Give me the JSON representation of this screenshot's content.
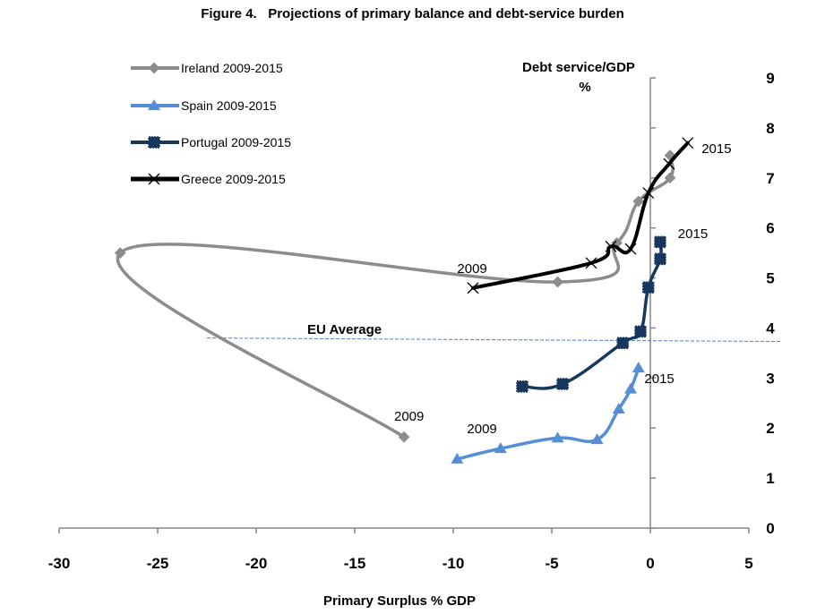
{
  "chart_data": {
    "type": "line",
    "title": "Figure 4.   Projections of primary balance and debt-service burden",
    "xlabel": "Primary Surplus % GDP",
    "ylabel": "Debt service/GDP",
    "ylabel_unit": "%",
    "xlim": [
      -30,
      5
    ],
    "ylim": [
      0,
      9
    ],
    "x_ticks": [
      -30,
      -25,
      -20,
      -15,
      -10,
      -5,
      0,
      5
    ],
    "y_ticks": [
      0,
      1,
      2,
      3,
      4,
      5,
      6,
      7,
      8,
      9
    ],
    "grid": false,
    "legend_position": "top-left",
    "series": [
      {
        "name": "Ireland 2009-2015",
        "color": "#8c8c8c",
        "marker": "diamond",
        "points": [
          {
            "x": -12.5,
            "y": 1.82
          },
          {
            "x": -26.9,
            "y": 5.5
          },
          {
            "x": -4.7,
            "y": 4.92
          },
          {
            "x": -1.7,
            "y": 5.7
          },
          {
            "x": -0.6,
            "y": 6.53
          },
          {
            "x": 1.0,
            "y": 7.0
          },
          {
            "x": 1.0,
            "y": 7.45
          }
        ]
      },
      {
        "name": "Spain 2009-2015",
        "color": "#558ed5",
        "marker": "triangle",
        "points": [
          {
            "x": -9.8,
            "y": 1.38
          },
          {
            "x": -7.6,
            "y": 1.59
          },
          {
            "x": -4.7,
            "y": 1.8
          },
          {
            "x": -2.7,
            "y": 1.77
          },
          {
            "x": -1.6,
            "y": 2.38
          },
          {
            "x": -1.0,
            "y": 2.78
          },
          {
            "x": -0.6,
            "y": 3.2
          }
        ]
      },
      {
        "name": "Portugal 2009-2015",
        "color": "#17375e",
        "marker": "square",
        "points": [
          {
            "x": -6.5,
            "y": 2.83
          },
          {
            "x": -4.45,
            "y": 2.88
          },
          {
            "x": -1.4,
            "y": 3.7
          },
          {
            "x": -0.5,
            "y": 3.93
          },
          {
            "x": -0.1,
            "y": 4.81
          },
          {
            "x": 0.5,
            "y": 5.38
          },
          {
            "x": 0.5,
            "y": 5.72
          }
        ]
      },
      {
        "name": "Greece 2009-2015",
        "color": "#000000",
        "marker": "x",
        "points": [
          {
            "x": -9.0,
            "y": 4.8
          },
          {
            "x": -3.0,
            "y": 5.3
          },
          {
            "x": -2.0,
            "y": 5.63
          },
          {
            "x": -1.0,
            "y": 5.58
          },
          {
            "x": -0.1,
            "y": 6.7
          },
          {
            "x": 0.95,
            "y": 7.28
          },
          {
            "x": 1.9,
            "y": 7.7
          }
        ]
      }
    ],
    "reference_line": {
      "label": "EU Average",
      "color": "#4f81bd",
      "style": "dashed",
      "from": {
        "x": -22.5,
        "y": 3.8
      },
      "to": {
        "x": 6.6,
        "y": 3.73
      }
    },
    "annotations": [
      {
        "text": "2009",
        "series": "Ireland 2009-2015",
        "x": -13.0,
        "y": 2.15
      },
      {
        "text": "2009",
        "series": "Spain 2009-2015",
        "x": -9.3,
        "y": 1.9
      },
      {
        "text": "2009",
        "series": "Greece 2009-2015",
        "x": -9.8,
        "y": 5.1
      },
      {
        "text": "2015",
        "series": "Greece 2009-2015",
        "x": 2.6,
        "y": 7.5
      },
      {
        "text": "2015",
        "series": "Portugal 2009-2015",
        "x": 1.4,
        "y": 5.8
      },
      {
        "text": "2015",
        "series": "Spain 2009-2015",
        "x": -0.3,
        "y": 2.9
      }
    ]
  }
}
